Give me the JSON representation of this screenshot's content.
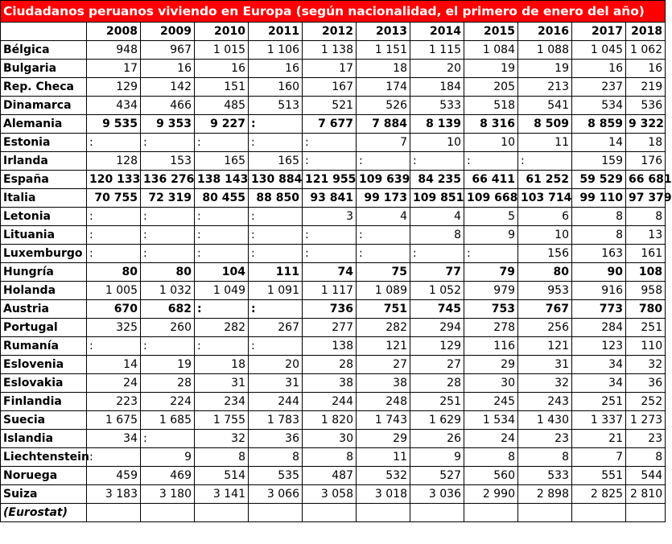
{
  "title": "Ciudadanos peruanos viviendo en Europa (según nacionalidad, el primero de enero del año)",
  "source": "(Eurostat)",
  "chart_data": {
    "type": "table",
    "title": "Ciudadanos peruanos viviendo en Europa (según nacionalidad, el primero de enero del año)",
    "columns": [
      "2008",
      "2009",
      "2010",
      "2011",
      "2012",
      "2013",
      "2014",
      "2015",
      "2016",
      "2017",
      "2018"
    ],
    "rows": [
      {
        "country": "Bélgica",
        "bold": false,
        "values": [
          "948",
          "967",
          "1 015",
          "1 106",
          "1 138",
          "1 151",
          "1 115",
          "1 084",
          "1 088",
          "1 045",
          "1 062"
        ]
      },
      {
        "country": "Bulgaria",
        "bold": false,
        "values": [
          "17",
          "16",
          "16",
          "16",
          "17",
          "18",
          "20",
          "19",
          "19",
          "16",
          "16"
        ]
      },
      {
        "country": "Rep. Checa",
        "bold": false,
        "values": [
          "129",
          "142",
          "151",
          "160",
          "167",
          "174",
          "184",
          "205",
          "213",
          "237",
          "219"
        ]
      },
      {
        "country": "Dinamarca",
        "bold": false,
        "values": [
          "434",
          "466",
          "485",
          "513",
          "521",
          "526",
          "533",
          "518",
          "541",
          "534",
          "536"
        ]
      },
      {
        "country": "Alemania",
        "bold": true,
        "values": [
          "9 535",
          "9 353",
          "9 227",
          ":",
          "7 677",
          "7 884",
          "8 139",
          "8 316",
          "8 509",
          "8 859",
          "9 322"
        ]
      },
      {
        "country": "Estonia",
        "bold": false,
        "values": [
          ":",
          ":",
          ":",
          ":",
          ":",
          "7",
          "10",
          "10",
          "11",
          "14",
          "18"
        ]
      },
      {
        "country": "Irlanda",
        "bold": false,
        "values": [
          "128",
          "153",
          "165",
          "165",
          ":",
          ":",
          ":",
          ":",
          ":",
          "159",
          "176"
        ]
      },
      {
        "country": "España",
        "bold": true,
        "values": [
          "120 133",
          "136 276",
          "138 143",
          "130 884",
          "121 955",
          "109 639",
          "84 235",
          "66 411",
          "61 252",
          "59 529",
          "66 681"
        ]
      },
      {
        "country": "Italia",
        "bold": true,
        "values": [
          "70 755",
          "72 319",
          "80 455",
          "88 850",
          "93 841",
          "99 173",
          "109 851",
          "109 668",
          "103 714",
          "99 110",
          "97 379"
        ]
      },
      {
        "country": "Letonia",
        "bold": false,
        "values": [
          ":",
          ":",
          ":",
          ":",
          "3",
          "4",
          "4",
          "5",
          "6",
          "8",
          "8"
        ]
      },
      {
        "country": "Lituania",
        "bold": false,
        "values": [
          ":",
          ":",
          ":",
          ":",
          ":",
          ":",
          "8",
          "9",
          "10",
          "8",
          "13"
        ]
      },
      {
        "country": "Luxemburgo",
        "bold": false,
        "values": [
          ":",
          ":",
          ":",
          ":",
          ":",
          ":",
          ":",
          ":",
          "156",
          "163",
          "161"
        ]
      },
      {
        "country": "Hungría",
        "bold": true,
        "values": [
          "80",
          "80",
          "104",
          "111",
          "74",
          "75",
          "77",
          "79",
          "80",
          "90",
          "108"
        ]
      },
      {
        "country": "Holanda",
        "bold": false,
        "values": [
          "1 005",
          "1 032",
          "1 049",
          "1 091",
          "1 117",
          "1 089",
          "1 052",
          "979",
          "953",
          "916",
          "958"
        ]
      },
      {
        "country": "Austria",
        "bold": true,
        "values": [
          "670",
          "682",
          ":",
          ":",
          "736",
          "751",
          "745",
          "753",
          "767",
          "773",
          "780"
        ]
      },
      {
        "country": "Portugal",
        "bold": false,
        "values": [
          "325",
          "260",
          "282",
          "267",
          "277",
          "282",
          "294",
          "278",
          "256",
          "284",
          "251"
        ]
      },
      {
        "country": "Rumanía",
        "bold": false,
        "values": [
          ":",
          ":",
          ":",
          ":",
          "138",
          "121",
          "129",
          "116",
          "121",
          "123",
          "110"
        ]
      },
      {
        "country": "Eslovenia",
        "bold": false,
        "values": [
          "14",
          "19",
          "18",
          "20",
          "28",
          "27",
          "27",
          "29",
          "31",
          "34",
          "32"
        ]
      },
      {
        "country": "Eslovakia",
        "bold": false,
        "values": [
          "24",
          "28",
          "31",
          "31",
          "38",
          "38",
          "28",
          "30",
          "32",
          "34",
          "36"
        ]
      },
      {
        "country": "Finlandia",
        "bold": false,
        "values": [
          "223",
          "224",
          "234",
          "244",
          "244",
          "248",
          "251",
          "245",
          "243",
          "251",
          "252"
        ]
      },
      {
        "country": "Suecia",
        "bold": false,
        "values": [
          "1 675",
          "1 685",
          "1 755",
          "1 783",
          "1 820",
          "1 743",
          "1 629",
          "1 534",
          "1 430",
          "1 337",
          "1 273"
        ]
      },
      {
        "country": "Islandia",
        "bold": false,
        "values": [
          "34",
          ":",
          "32",
          "36",
          "30",
          "29",
          "26",
          "24",
          "23",
          "21",
          "23"
        ]
      },
      {
        "country": "Liechtenstein",
        "bold": false,
        "values": [
          ":",
          "9",
          "8",
          "8",
          "8",
          "11",
          "9",
          "8",
          "8",
          "7",
          "8"
        ]
      },
      {
        "country": "Noruega",
        "bold": false,
        "values": [
          "459",
          "469",
          "514",
          "535",
          "487",
          "532",
          "527",
          "560",
          "533",
          "551",
          "544"
        ]
      },
      {
        "country": "Suiza",
        "bold": false,
        "values": [
          "3 183",
          "3 180",
          "3 141",
          "3 066",
          "3 058",
          "3 018",
          "3 036",
          "2 990",
          "2 898",
          "2 825",
          "2 810"
        ]
      }
    ]
  }
}
